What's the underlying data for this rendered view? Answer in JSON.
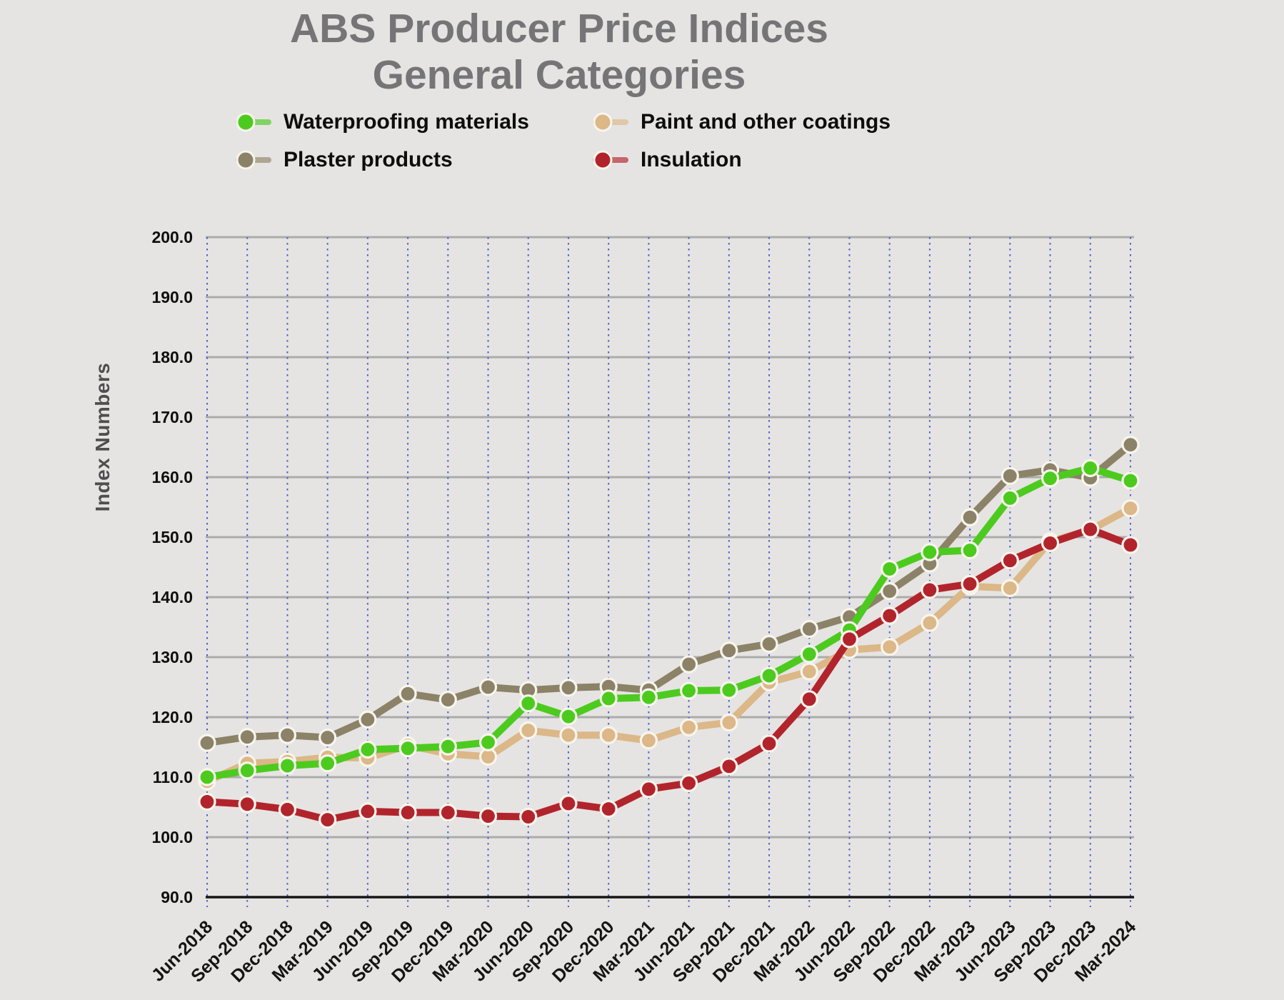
{
  "title": {
    "line1": "ABS Producer Price Indices",
    "line2": "General Categories"
  },
  "y_axis": {
    "label": "Index Numbers",
    "min": 90,
    "max": 200,
    "step": 10,
    "tick_decimals": 1
  },
  "legend": {
    "items": [
      {
        "label": "Waterproofing materials",
        "color": "#4ccb1e"
      },
      {
        "label": "Paint and other coatings",
        "color": "#dcb787"
      },
      {
        "label": "Plaster products",
        "color": "#8c8267"
      },
      {
        "label": "Insulation",
        "color": "#b2242c"
      }
    ]
  },
  "chart_data": {
    "type": "line",
    "title": "ABS Producer Price Indices — General Categories",
    "xlabel": "",
    "ylabel": "Index Numbers",
    "ylim": [
      90,
      200
    ],
    "y_gridlines": "solid gray every 10 units",
    "x_gridlines": "dotted blue at every quarter",
    "legend_position": "top",
    "categories": [
      "Jun-2018",
      "Sep-2018",
      "Dec-2018",
      "Mar-2019",
      "Jun-2019",
      "Sep-2019",
      "Dec-2019",
      "Mar-2020",
      "Jun-2020",
      "Sep-2020",
      "Dec-2020",
      "Mar-2021",
      "Jun-2021",
      "Sep-2021",
      "Dec-2021",
      "Mar-2022",
      "Jun-2022",
      "Sep-2022",
      "Dec-2022",
      "Mar-2023",
      "Jun-2023",
      "Sep-2023",
      "Dec-2023",
      "Mar-2024"
    ],
    "series": [
      {
        "name": "Waterproofing materials",
        "color": "#4ccb1e",
        "values": [
          110.0,
          111.1,
          111.9,
          112.3,
          114.6,
          114.8,
          115.1,
          115.8,
          122.3,
          120.1,
          123.1,
          123.3,
          124.4,
          124.5,
          126.9,
          130.5,
          134.5,
          144.7,
          147.5,
          147.8,
          156.5,
          159.8,
          161.5,
          159.4
        ]
      },
      {
        "name": "Paint and other coatings",
        "color": "#dcb787",
        "values": [
          109.3,
          112.3,
          112.6,
          113.3,
          113.2,
          115.3,
          113.9,
          113.4,
          117.8,
          117.0,
          117.0,
          116.1,
          118.3,
          119.1,
          125.8,
          127.6,
          131.2,
          131.7,
          135.7,
          141.8,
          141.5,
          149.3,
          151.2,
          154.8
        ]
      },
      {
        "name": "Plaster products",
        "color": "#8c8267",
        "values": [
          115.7,
          116.7,
          117.0,
          116.6,
          119.6,
          123.9,
          122.9,
          125.0,
          124.5,
          124.9,
          125.1,
          124.5,
          128.8,
          131.1,
          132.2,
          134.7,
          136.7,
          141.0,
          145.6,
          153.3,
          160.2,
          161.2,
          159.9,
          165.4
        ]
      },
      {
        "name": "Insulation",
        "color": "#b2242c",
        "values": [
          105.9,
          105.5,
          104.6,
          102.9,
          104.3,
          104.1,
          104.1,
          103.5,
          103.4,
          105.6,
          104.7,
          108.0,
          109.0,
          111.8,
          115.6,
          123.0,
          133.0,
          136.9,
          141.2,
          142.2,
          146.1,
          149.0,
          151.3,
          148.7
        ]
      }
    ],
    "style": {
      "background": "#e5e4e2",
      "gridline_color": "#ababab",
      "vline_color": "#5162cc",
      "axis_color": "#161616",
      "tick_label_color": "#0e0e0e",
      "title_color": "#757577",
      "marker_ring_color": "#f8f5ee",
      "line_width": 10,
      "marker_radius": 11
    },
    "draw_order": [
      1,
      2,
      0,
      3
    ]
  }
}
